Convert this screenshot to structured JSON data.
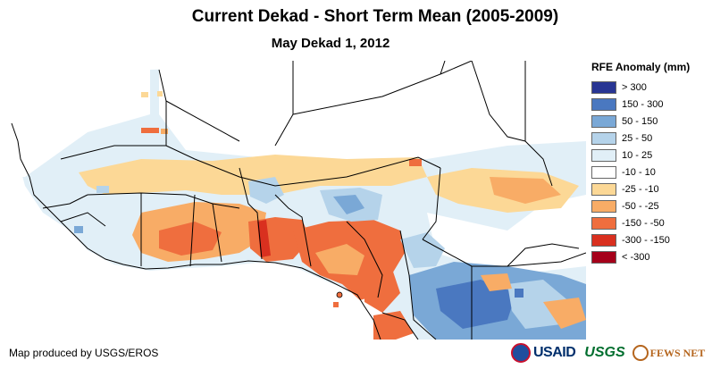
{
  "title": "Current Dekad - Short Term Mean (2005-2009)",
  "subtitle": "May Dekad 1, 2012",
  "legend": {
    "title": "RFE Anomaly (mm)",
    "items": [
      {
        "label": "> 300",
        "color": "#283593"
      },
      {
        "label": "150 - 300",
        "color": "#4a78c0"
      },
      {
        "label": "50 - 150",
        "color": "#7aa8d6"
      },
      {
        "label": "25 - 50",
        "color": "#b5d3ea"
      },
      {
        "label": "10 - 25",
        "color": "#e1eff7"
      },
      {
        "label": "-10 - 10",
        "color": "#ffffff"
      },
      {
        "label": "-25 - -10",
        "color": "#fcd896"
      },
      {
        "label": "-50 - -25",
        "color": "#f8ac66"
      },
      {
        "label": "-150 - -50",
        "color": "#ef6e3e"
      },
      {
        "label": "-300 - -150",
        "color": "#d9301f"
      },
      {
        "label": "< -300",
        "color": "#a5001a"
      }
    ]
  },
  "credit": "Map produced by USGS/EROS",
  "logos": {
    "usaid": "USAID",
    "usgs": "USGS",
    "fews": "FEWS NET"
  }
}
